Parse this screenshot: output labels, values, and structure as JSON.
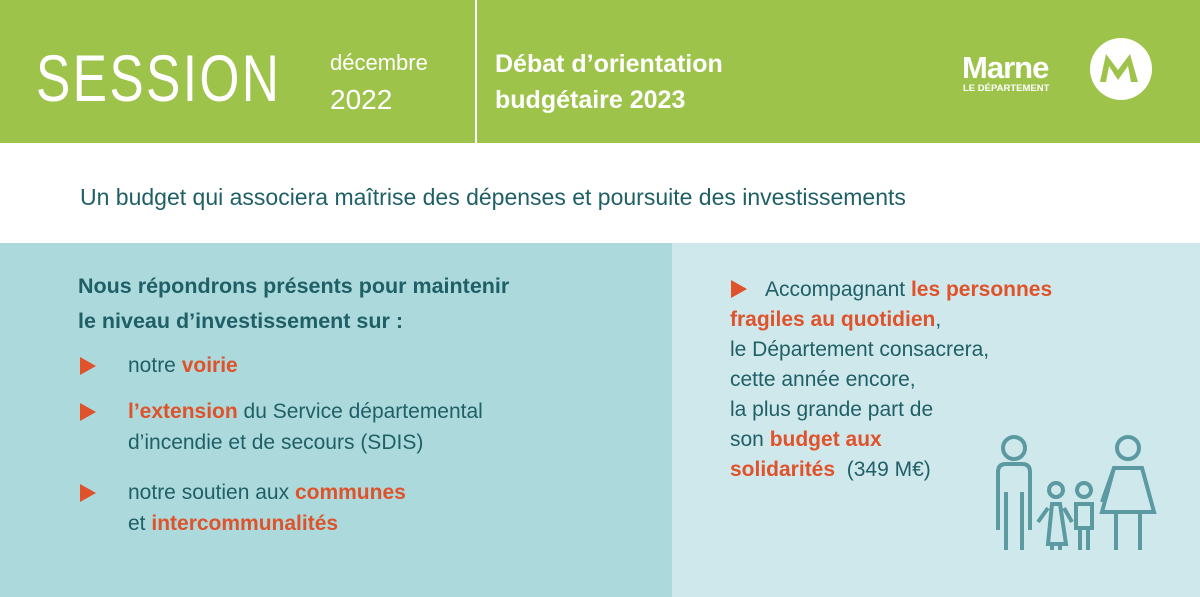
{
  "header": {
    "session": "SESSION",
    "month": "décembre",
    "year": "2022",
    "title_lines": [
      "Débat d’orientation",
      "budgétaire 2023"
    ],
    "logo_name": "Marne",
    "logo_sub": "LE DÉPARTEMENT"
  },
  "subtitle": "Un budget qui associera maîtrise des dépenses et poursuite des investissements",
  "left": {
    "heading_lines": [
      "Nous répondrons présents pour maintenir",
      "le niveau d’investissement sur :"
    ],
    "items": [
      {
        "lines": [
          [
            {
              "text": "notre "
            },
            {
              "text": "voirie",
              "em": true
            }
          ]
        ]
      },
      {
        "lines": [
          [
            {
              "text": "l’extension",
              "em": true
            },
            {
              "text": " du Service départemental"
            }
          ],
          [
            {
              "text": "d’incendie et de secours (SDIS)"
            }
          ]
        ]
      },
      {
        "lines": [
          [
            {
              "text": "notre soutien aux "
            },
            {
              "text": "communes",
              "em": true
            }
          ],
          [
            {
              "text": "et "
            },
            {
              "text": "intercommunalités",
              "em": true
            }
          ]
        ]
      }
    ]
  },
  "right": {
    "lines": [
      [
        {
          "text": "Accompagnant "
        },
        {
          "text": "les personnes",
          "em": true
        }
      ],
      [
        {
          "text": "fragiles au quotidien",
          "em": true
        },
        {
          "text": ","
        }
      ],
      [
        {
          "text": "le Département consacrera,"
        }
      ],
      [
        {
          "text": "cette année encore,"
        }
      ],
      [
        {
          "text": "la plus grande part de"
        }
      ],
      [
        {
          "text": "son "
        },
        {
          "text": "budget aux",
          "em": true
        }
      ],
      [
        {
          "text": "solidarités",
          "em": true
        },
        {
          "text": "  (349 M€)"
        }
      ]
    ]
  }
}
